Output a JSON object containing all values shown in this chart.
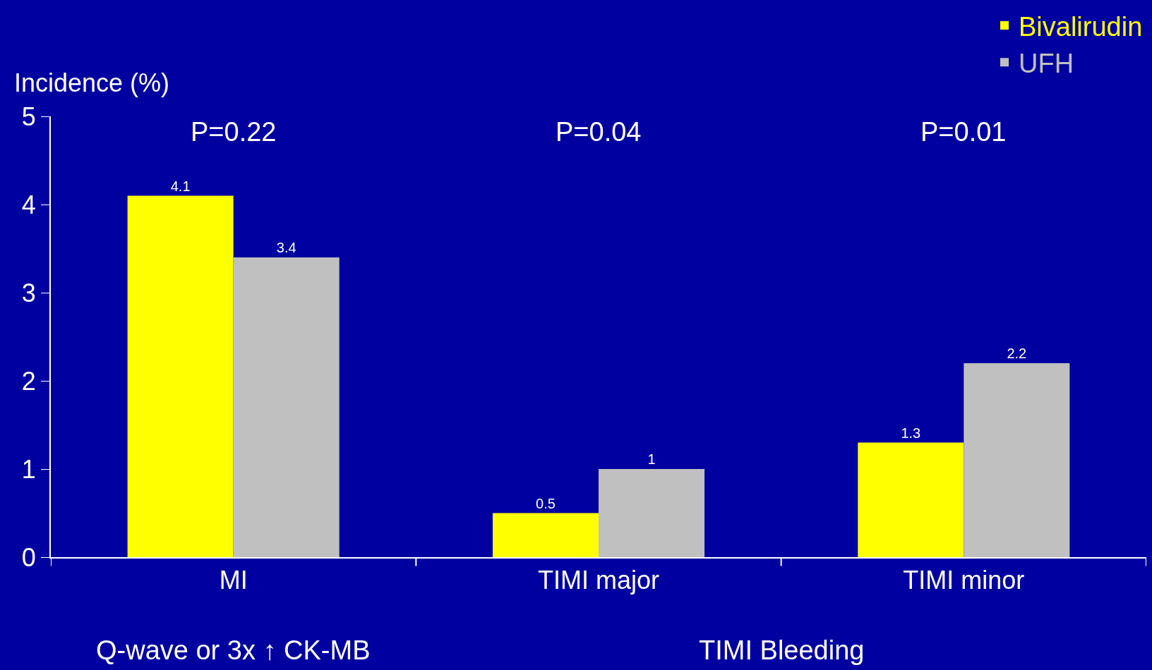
{
  "chart_data": {
    "type": "bar",
    "ylabel": "Incidence (%)",
    "categories": [
      "MI",
      "TIMI major",
      "TIMI minor"
    ],
    "series": [
      {
        "name": "Bivalirudin",
        "color": "#ffff00",
        "values": [
          4.1,
          0.5,
          1.3
        ]
      },
      {
        "name": "UFH",
        "color": "#c0c0c0",
        "values": [
          3.4,
          1,
          2.2
        ]
      }
    ],
    "ylim": [
      0,
      5
    ],
    "yticks": [
      0,
      1,
      2,
      3,
      4,
      5
    ],
    "grid": false,
    "legend": "top right",
    "data_labels": true,
    "annotations": [
      "P=0.22",
      "P=0.04",
      "P=0.01",
      "Q-wave or 3x ↑ CK-MB",
      "TIMI Bleeding"
    ]
  }
}
